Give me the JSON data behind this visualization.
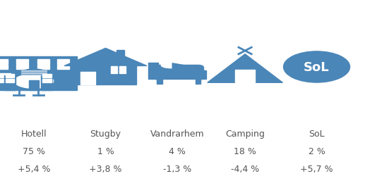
{
  "background_color": "#ffffff",
  "icon_color": "#4a86b8",
  "text_color": "#555555",
  "categories": [
    "Hotell",
    "Stugby",
    "Vandrarhem",
    "Camping",
    "SoL"
  ],
  "percentages": [
    "75 %",
    "1 %",
    "4 %",
    "18 %",
    "2 %"
  ],
  "changes": [
    "+5,4 %",
    "+3,8 %",
    "-1,3 %",
    "-4,4 %",
    "+5,7 %"
  ],
  "x_positions": [
    0.09,
    0.28,
    0.47,
    0.65,
    0.84
  ],
  "label_fontsize": 9,
  "pct_fontsize": 9,
  "change_fontsize": 9,
  "sol_text": "SoL",
  "figsize": [
    5.34,
    2.51
  ],
  "dpi": 100
}
